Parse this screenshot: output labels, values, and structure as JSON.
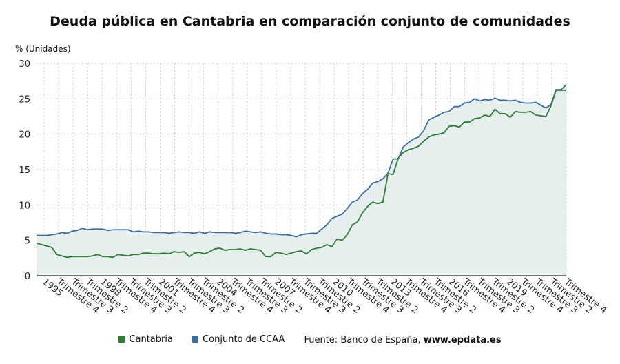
{
  "title": "Deuda pública en Cantabria en comparación conjunto de comunidades",
  "unit_label": "% (Unidades)",
  "source_prefix": "Fuente: Banco de España,",
  "source_site": "www.epdata.es",
  "colors": {
    "cantabria": "#2e7d32",
    "ccaa": "#3a6e9e",
    "fill": "#e6eeee",
    "grid": "#c8c8c8"
  },
  "chart_data": {
    "type": "area",
    "xlabel": "",
    "ylabel": "% (Unidades)",
    "ylim": [
      0,
      30
    ],
    "yticks": [
      0,
      5,
      10,
      15,
      20,
      25,
      30
    ],
    "grid": true,
    "legend_position": "bottom",
    "x_tick_labels": [
      "1995",
      "Trimestre 4",
      "Trimestre 3",
      "Trimestre 2",
      "1998",
      "Trimestre 4",
      "Trimestre 3",
      "Trimestre 2",
      "2001",
      "Trimestre 4",
      "Trimestre 3",
      "Trimestre 2",
      "2004",
      "Trimestre 4",
      "Trimestre 3",
      "Trimestre 2",
      "2007",
      "Trimestre 4",
      "Trimestre 3",
      "Trimestre 2",
      "2010",
      "Trimestre 4",
      "Trimestre 3",
      "Trimestre 2",
      "2013",
      "Trimestre 4",
      "Trimestre 3",
      "Trimestre 2",
      "2016",
      "Trimestre 4",
      "Trimestre 3",
      "Trimestre 2",
      "2019",
      "Trimestre 4",
      "Trimestre 3",
      "Trimestre 2",
      "Trimestre 4"
    ],
    "series": [
      {
        "name": "Cantabria",
        "values": [
          4.6,
          4.4,
          4.2,
          4.0,
          3.0,
          2.8,
          2.6,
          2.7,
          2.7,
          2.7,
          2.7,
          2.8,
          3.0,
          2.7,
          2.7,
          2.6,
          3.0,
          2.9,
          2.8,
          3.0,
          3.0,
          3.2,
          3.2,
          3.1,
          3.1,
          3.2,
          3.1,
          3.4,
          3.3,
          3.4,
          2.7,
          3.2,
          3.3,
          3.1,
          3.4,
          3.8,
          3.9,
          3.6,
          3.7,
          3.7,
          3.8,
          3.6,
          3.8,
          3.7,
          3.6,
          2.7,
          2.7,
          3.3,
          3.2,
          3.0,
          3.2,
          3.4,
          3.5,
          3.1,
          3.7,
          3.9,
          4.0,
          4.4,
          4.1,
          5.2,
          5.0,
          5.8,
          7.2,
          7.6,
          8.9,
          9.8,
          10.4,
          10.2,
          10.4,
          14.4,
          14.3,
          16.6,
          17.4,
          17.8,
          18.0,
          18.3,
          19.0,
          19.6,
          19.9,
          20.0,
          20.2,
          21.1,
          21.2,
          21.0,
          21.7,
          21.7,
          22.2,
          22.3,
          22.7,
          22.5,
          23.5,
          22.9,
          22.9,
          22.4,
          23.2,
          23.1,
          23.1,
          23.2,
          22.7,
          22.6,
          22.5,
          24.0,
          26.2,
          26.2,
          26.2
        ]
      },
      {
        "name": "Conjunto de CCAA",
        "values": [
          5.7,
          5.7,
          5.7,
          5.8,
          5.9,
          6.1,
          6.0,
          6.3,
          6.4,
          6.7,
          6.5,
          6.6,
          6.6,
          6.6,
          6.4,
          6.5,
          6.5,
          6.5,
          6.5,
          6.2,
          6.3,
          6.2,
          6.2,
          6.1,
          6.1,
          6.1,
          6.0,
          6.1,
          6.2,
          6.1,
          6.1,
          6.0,
          6.2,
          6.0,
          6.2,
          6.1,
          6.1,
          6.1,
          6.1,
          6.0,
          6.1,
          6.3,
          6.2,
          6.1,
          6.2,
          6.0,
          5.9,
          5.9,
          5.8,
          5.8,
          5.7,
          5.5,
          5.8,
          5.9,
          6.0,
          6.0,
          6.6,
          7.2,
          8.1,
          8.4,
          8.7,
          9.5,
          10.4,
          10.7,
          11.6,
          12.2,
          13.1,
          13.3,
          13.7,
          14.5,
          16.5,
          16.5,
          18.2,
          18.8,
          19.3,
          19.6,
          20.5,
          22.0,
          22.4,
          22.7,
          23.1,
          23.2,
          23.9,
          23.9,
          24.4,
          24.5,
          25.0,
          24.7,
          24.9,
          24.8,
          25.1,
          24.8,
          24.8,
          24.7,
          24.8,
          24.5,
          24.4,
          24.4,
          24.5,
          24.1,
          23.7,
          24.2,
          26.3,
          26.3,
          27.0
        ]
      }
    ]
  }
}
